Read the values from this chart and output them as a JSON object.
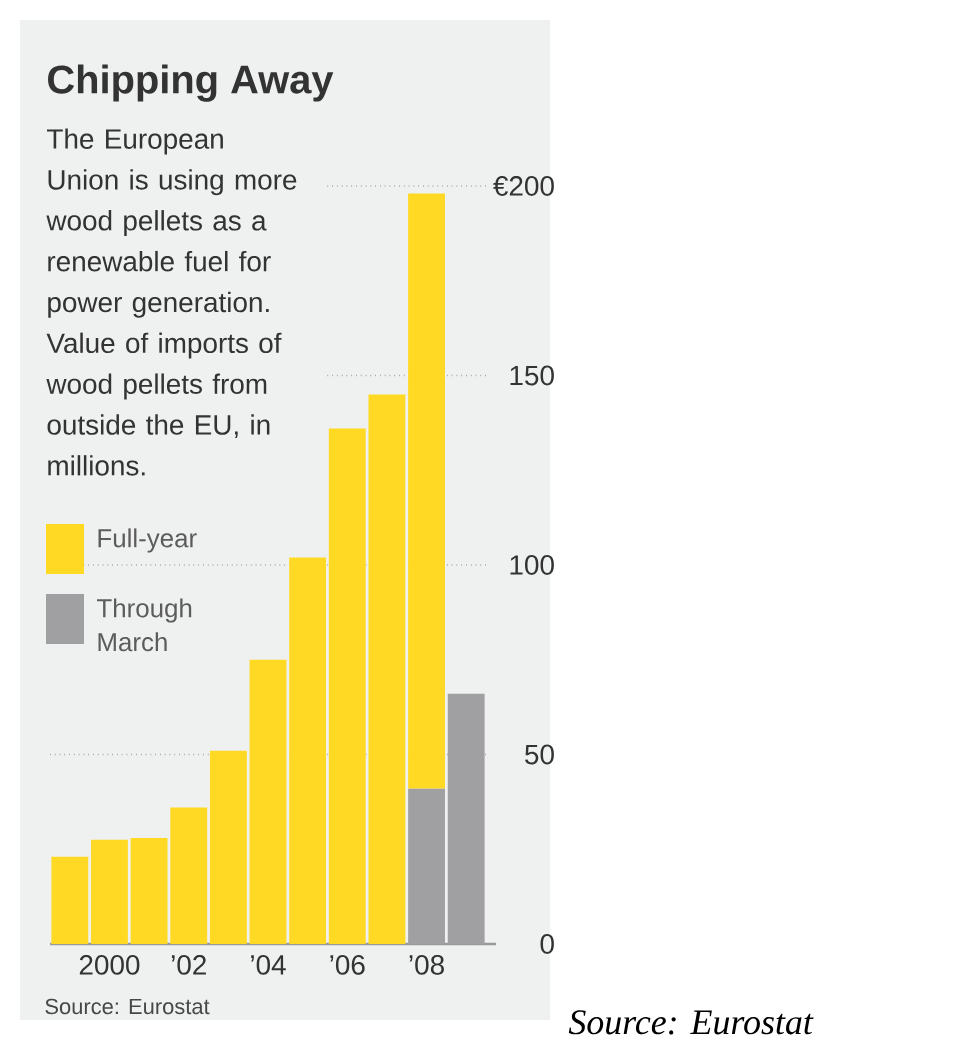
{
  "chart_data": {
    "type": "bar",
    "stacked": true,
    "title": "Chipping Away",
    "subtitle": "The European Union is using more wood pellets as a renewable fuel for power generation. Value of imports of wood pellets from outside the EU, in millions.",
    "categories": [
      null,
      "2000",
      null,
      "’02",
      null,
      "’04",
      null,
      "’06",
      null,
      "’08",
      null
    ],
    "series": [
      {
        "name": "Through March",
        "color": "#a0a0a2",
        "values": [
          null,
          null,
          null,
          null,
          null,
          null,
          null,
          null,
          null,
          41,
          66
        ]
      },
      {
        "name": "Full-year",
        "color": "#ffd923",
        "values": [
          23,
          27.5,
          28,
          36,
          51,
          75,
          102,
          136,
          145,
          157,
          null
        ]
      }
    ],
    "ylim": [
      0,
      200
    ],
    "yticks": [
      0,
      50,
      100,
      150,
      {
        "value": 200,
        "label": "€200"
      }
    ],
    "grid": "y",
    "legend": "left",
    "annotations": [
      "Source: Eurostat",
      "Source: Eurostat"
    ]
  }
}
